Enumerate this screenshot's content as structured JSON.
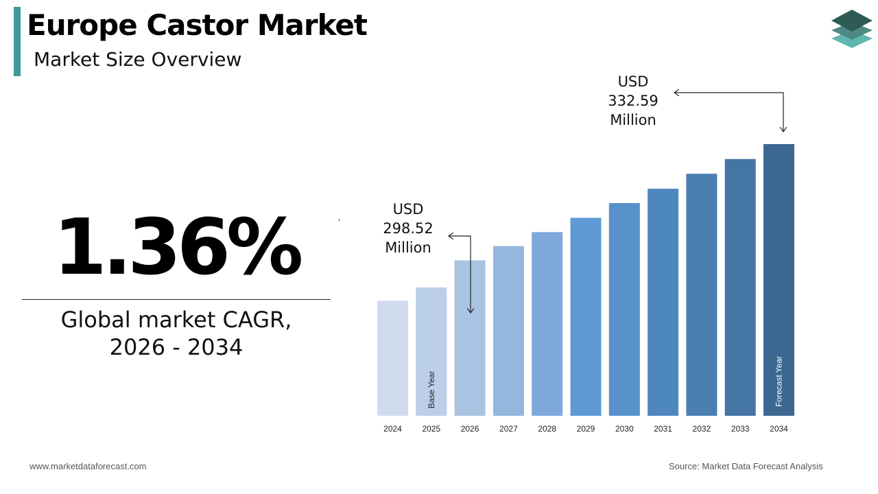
{
  "header": {
    "title": "Europe Castor Market",
    "subtitle": "Market Size Overview"
  },
  "highlight": {
    "cagr": "1.36%",
    "label_line1": "Global market CAGR,",
    "label_line2": "2026 - 2034"
  },
  "callouts": {
    "start": {
      "line1": "USD",
      "line2": "298.52",
      "line3": "Million"
    },
    "end": {
      "line1": "USD",
      "line2": "332.59",
      "line3": "Million"
    }
  },
  "chart_data": {
    "type": "bar",
    "categories": [
      "2024",
      "2025",
      "2026",
      "2027",
      "2028",
      "2029",
      "2030",
      "2031",
      "2032",
      "2033",
      "2034"
    ],
    "values": [
      286.7,
      290.6,
      298.52,
      302.7,
      306.8,
      311.0,
      315.3,
      319.5,
      323.9,
      328.2,
      332.59
    ],
    "bar_annotations": {
      "2025": "Base Year",
      "2034": "Forecast Year"
    },
    "colors": [
      "#d0dcee",
      "#bccfe8",
      "#a9c3e3",
      "#94b7de",
      "#7ea9da",
      "#5e9bd6",
      "#5791c9",
      "#4e87bf",
      "#4a7fb2",
      "#4475a3",
      "#3b6790"
    ],
    "ylim": [
      253,
      340
    ]
  },
  "footer": {
    "website": "www.marketdataforecast.com",
    "source": "Source: Market Data Forecast Analysis"
  }
}
